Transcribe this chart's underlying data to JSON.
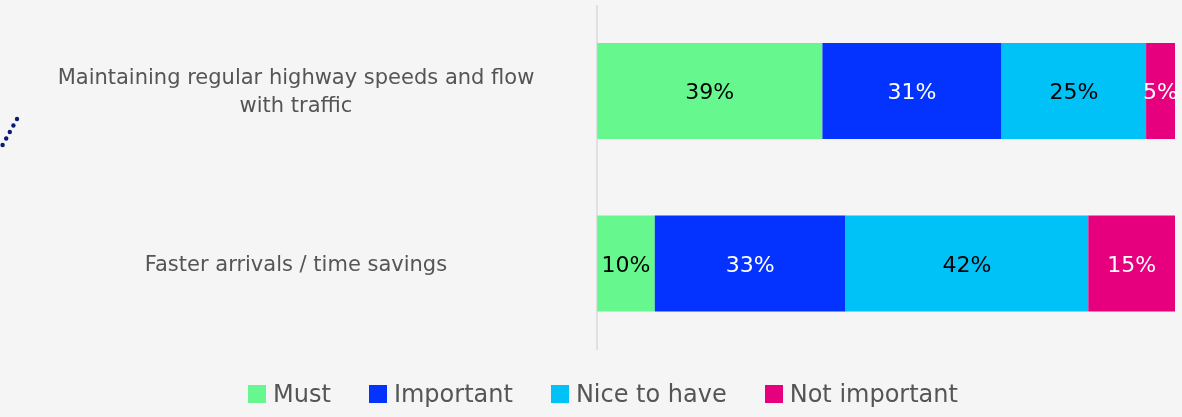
{
  "chart_data": {
    "type": "bar",
    "orientation": "horizontal",
    "stacked": true,
    "categories": [
      "Maintaining regular highway speeds and flow with traffic",
      "Faster arrivals / time savings"
    ],
    "series": [
      {
        "name": "Must",
        "color": "#66f78e",
        "values": [
          39,
          10
        ],
        "value_labels": [
          "39%",
          "10%"
        ]
      },
      {
        "name": "Important",
        "color": "#0433ff",
        "values": [
          31,
          33
        ],
        "value_labels": [
          "31%",
          "33%"
        ]
      },
      {
        "name": "Nice to have",
        "color": "#00c2f7",
        "values": [
          25,
          42
        ],
        "value_labels": [
          "25%",
          "42%"
        ]
      },
      {
        "name": "Not important",
        "color": "#e6007e",
        "values": [
          5,
          15
        ],
        "value_labels": [
          "5%",
          "15%"
        ]
      }
    ],
    "legend": "bottom",
    "grid": false
  }
}
